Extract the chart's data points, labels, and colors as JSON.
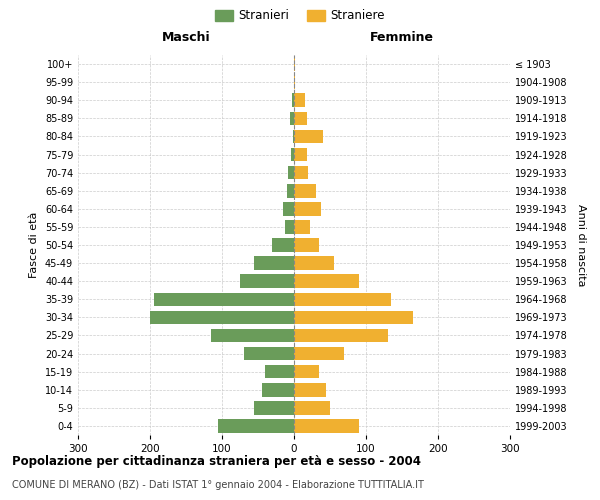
{
  "age_groups": [
    "0-4",
    "5-9",
    "10-14",
    "15-19",
    "20-24",
    "25-29",
    "30-34",
    "35-39",
    "40-44",
    "45-49",
    "50-54",
    "55-59",
    "60-64",
    "65-69",
    "70-74",
    "75-79",
    "80-84",
    "85-89",
    "90-94",
    "95-99",
    "100+"
  ],
  "birth_years": [
    "1999-2003",
    "1994-1998",
    "1989-1993",
    "1984-1988",
    "1979-1983",
    "1974-1978",
    "1969-1973",
    "1964-1968",
    "1959-1963",
    "1954-1958",
    "1949-1953",
    "1944-1948",
    "1939-1943",
    "1934-1938",
    "1929-1933",
    "1924-1928",
    "1919-1923",
    "1914-1918",
    "1909-1913",
    "1904-1908",
    "≤ 1903"
  ],
  "maschi": [
    105,
    55,
    45,
    40,
    70,
    115,
    200,
    195,
    75,
    55,
    30,
    12,
    15,
    10,
    8,
    4,
    2,
    5,
    3,
    0,
    0
  ],
  "femmine": [
    90,
    50,
    45,
    35,
    70,
    130,
    165,
    135,
    90,
    55,
    35,
    22,
    38,
    30,
    20,
    18,
    40,
    18,
    15,
    2,
    1
  ],
  "maschi_color": "#6a9c5a",
  "femmine_color": "#f0b030",
  "background_color": "#ffffff",
  "grid_color": "#cccccc",
  "title": "Popolazione per cittadinanza straniera per età e sesso - 2004",
  "subtitle": "COMUNE DI MERANO (BZ) - Dati ISTAT 1° gennaio 2004 - Elaborazione TUTTITALIA.IT",
  "xlabel_left": "Maschi",
  "xlabel_right": "Femmine",
  "ylabel_left": "Fasce di età",
  "ylabel_right": "Anni di nascita",
  "legend_stranieri": "Stranieri",
  "legend_straniere": "Straniere",
  "xlim": 300,
  "bar_height": 0.75
}
